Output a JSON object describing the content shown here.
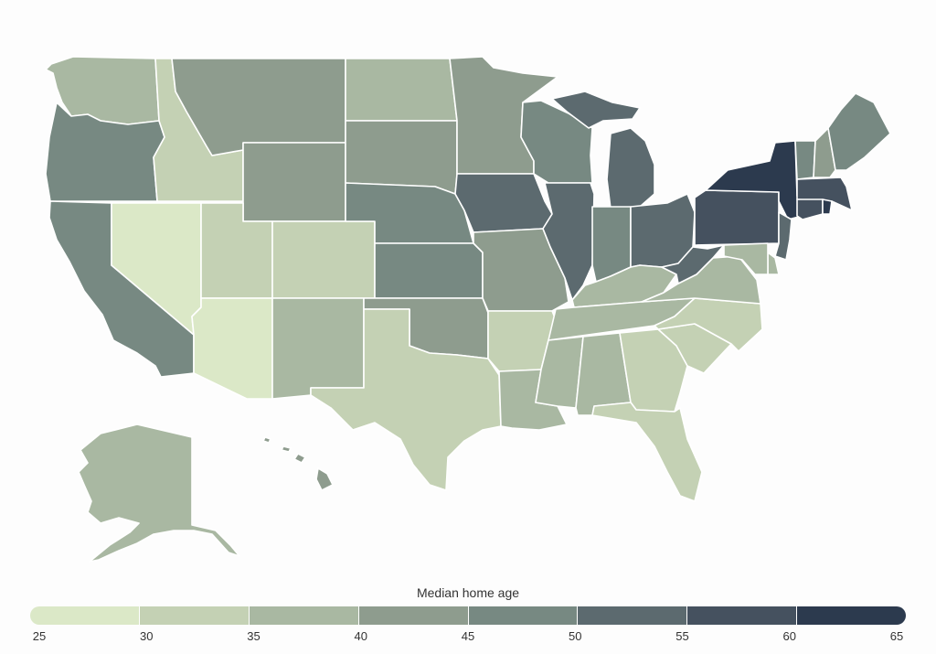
{
  "legend": {
    "title": "Median home age",
    "bins": [
      {
        "min": 25,
        "max": 30,
        "color": "#dbe8c7"
      },
      {
        "min": 30,
        "max": 35,
        "color": "#c4d1b4"
      },
      {
        "min": 35,
        "max": 40,
        "color": "#a9b8a2"
      },
      {
        "min": 40,
        "max": 45,
        "color": "#8e9c8e"
      },
      {
        "min": 45,
        "max": 50,
        "color": "#778982"
      },
      {
        "min": 50,
        "max": 55,
        "color": "#5c6a6f"
      },
      {
        "min": 55,
        "max": 60,
        "color": "#45515f"
      },
      {
        "min": 60,
        "max": 65,
        "color": "#2c3a4e"
      }
    ],
    "ticks": [
      "25",
      "30",
      "35",
      "40",
      "45",
      "50",
      "55",
      "60",
      "65"
    ]
  },
  "states": [
    {
      "code": "WA",
      "bin": 2
    },
    {
      "code": "OR",
      "bin": 4
    },
    {
      "code": "CA",
      "bin": 4
    },
    {
      "code": "NV",
      "bin": 0
    },
    {
      "code": "ID",
      "bin": 1
    },
    {
      "code": "MT",
      "bin": 3
    },
    {
      "code": "WY",
      "bin": 3
    },
    {
      "code": "UT",
      "bin": 1
    },
    {
      "code": "AZ",
      "bin": 0
    },
    {
      "code": "CO",
      "bin": 1
    },
    {
      "code": "NM",
      "bin": 2
    },
    {
      "code": "ND",
      "bin": 2
    },
    {
      "code": "SD",
      "bin": 3
    },
    {
      "code": "NE",
      "bin": 4
    },
    {
      "code": "KS",
      "bin": 4
    },
    {
      "code": "OK",
      "bin": 3
    },
    {
      "code": "TX",
      "bin": 1
    },
    {
      "code": "MN",
      "bin": 3
    },
    {
      "code": "IA",
      "bin": 5
    },
    {
      "code": "MO",
      "bin": 3
    },
    {
      "code": "AR",
      "bin": 1
    },
    {
      "code": "LA",
      "bin": 2
    },
    {
      "code": "WI",
      "bin": 4
    },
    {
      "code": "IL",
      "bin": 5
    },
    {
      "code": "MI",
      "bin": 5
    },
    {
      "code": "IN",
      "bin": 4
    },
    {
      "code": "OH",
      "bin": 5
    },
    {
      "code": "KY",
      "bin": 2
    },
    {
      "code": "TN",
      "bin": 2
    },
    {
      "code": "MS",
      "bin": 2
    },
    {
      "code": "AL",
      "bin": 2
    },
    {
      "code": "GA",
      "bin": 1
    },
    {
      "code": "FL",
      "bin": 1
    },
    {
      "code": "SC",
      "bin": 1
    },
    {
      "code": "NC",
      "bin": 1
    },
    {
      "code": "VA",
      "bin": 2
    },
    {
      "code": "WV",
      "bin": 5
    },
    {
      "code": "PA",
      "bin": 6
    },
    {
      "code": "NY",
      "bin": 7
    },
    {
      "code": "VT",
      "bin": 4
    },
    {
      "code": "NH",
      "bin": 3
    },
    {
      "code": "ME",
      "bin": 4
    },
    {
      "code": "MA",
      "bin": 6
    },
    {
      "code": "CT",
      "bin": 6
    },
    {
      "code": "RI",
      "bin": 7
    },
    {
      "code": "NJ",
      "bin": 5
    },
    {
      "code": "DE",
      "bin": 2
    },
    {
      "code": "MD",
      "bin": 2
    },
    {
      "code": "AK",
      "bin": 2
    },
    {
      "code": "HI",
      "bin": 3
    }
  ]
}
